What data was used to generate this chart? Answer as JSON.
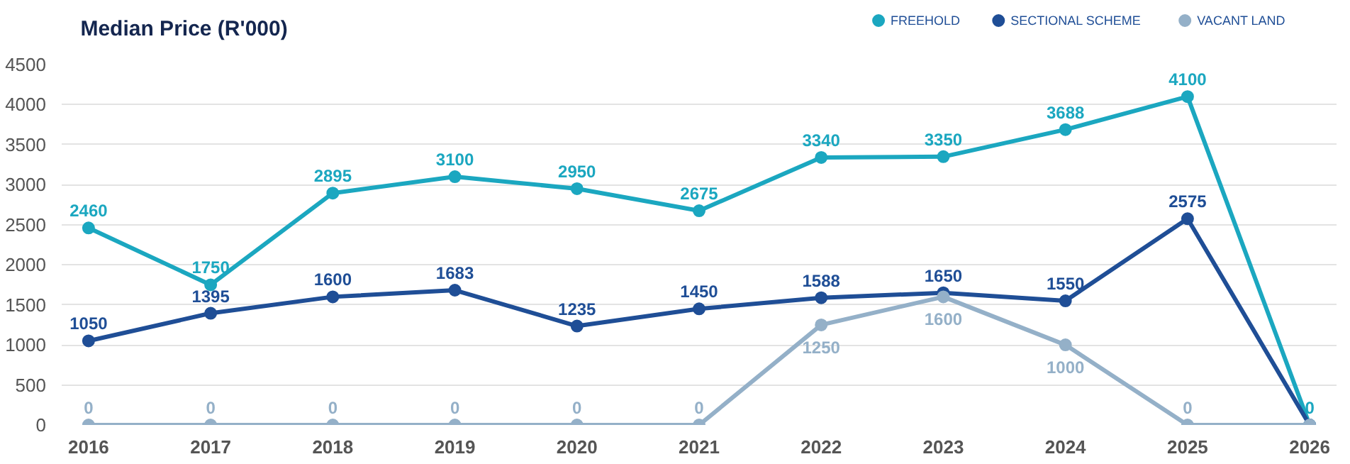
{
  "chart_data": {
    "type": "line",
    "title": "Median Price (R'000)",
    "categories": [
      "2016",
      "2017",
      "2018",
      "2019",
      "2020",
      "2021",
      "2022",
      "2023",
      "2024",
      "2025",
      "2026"
    ],
    "series": [
      {
        "name": "FREEHOLD",
        "color": "#1ba7c0",
        "values": [
          2460,
          1750,
          2895,
          3100,
          2950,
          2675,
          3340,
          3350,
          3688,
          4100,
          0
        ],
        "value_labels": [
          "2460",
          "1750",
          "2895",
          "3100",
          "2950",
          "2675",
          "3340",
          "3350",
          "3688",
          "4100",
          "0"
        ]
      },
      {
        "name": "SECTIONAL SCHEME",
        "color": "#1f4e96",
        "values": [
          1050,
          1395,
          1600,
          1683,
          1235,
          1450,
          1588,
          1650,
          1550,
          2575,
          0
        ],
        "value_labels": [
          "1050",
          "1395",
          "1600",
          "1683",
          "1235",
          "1450",
          "1588",
          "1650",
          "1550",
          "2575",
          null
        ]
      },
      {
        "name": "VACANT LAND",
        "color": "#94b0c8",
        "values": [
          0,
          0,
          0,
          0,
          0,
          0,
          1250,
          1600,
          1000,
          0,
          0
        ],
        "value_labels": [
          "0",
          "0",
          "0",
          "0",
          "0",
          "0",
          "1250",
          "1600",
          "1000",
          "0",
          null
        ]
      }
    ],
    "ylim": [
      0,
      4500
    ],
    "yticks": [
      0,
      500,
      1000,
      1500,
      2000,
      2500,
      3000,
      3500,
      4000,
      4500
    ],
    "grid": "y",
    "legend": "top right",
    "marker": "circle",
    "line_style": "solid"
  }
}
